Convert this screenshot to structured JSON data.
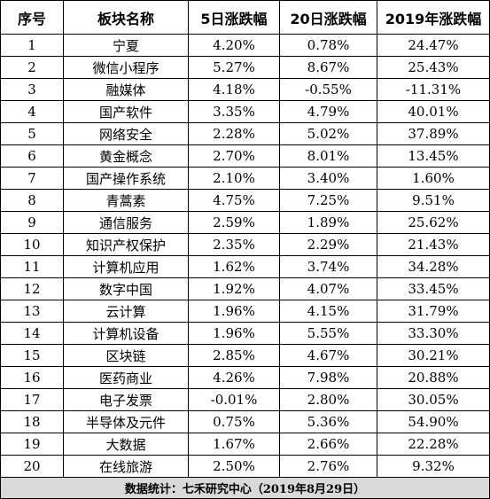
{
  "table": {
    "headers": [
      "序号",
      "板块名称",
      "5日涨跌幅",
      "20日涨跌幅",
      "2019年涨跌幅"
    ],
    "rows": [
      [
        "1",
        "宁夏",
        "4.20%",
        "0.78%",
        "24.47%"
      ],
      [
        "2",
        "微信小程序",
        "5.27%",
        "8.67%",
        "25.43%"
      ],
      [
        "3",
        "融媒体",
        "4.18%",
        "-0.55%",
        "-11.31%"
      ],
      [
        "4",
        "国产软件",
        "3.35%",
        "4.79%",
        "40.01%"
      ],
      [
        "5",
        "网络安全",
        "2.28%",
        "5.02%",
        "37.89%"
      ],
      [
        "6",
        "黄金概念",
        "2.70%",
        "8.01%",
        "13.45%"
      ],
      [
        "7",
        "国产操作系统",
        "2.10%",
        "3.40%",
        "1.60%"
      ],
      [
        "8",
        "青蒿素",
        "4.75%",
        "7.25%",
        "9.51%"
      ],
      [
        "9",
        "通信服务",
        "2.59%",
        "1.89%",
        "25.62%"
      ],
      [
        "10",
        "知识产权保护",
        "2.35%",
        "2.29%",
        "21.43%"
      ],
      [
        "11",
        "计算机应用",
        "1.62%",
        "3.74%",
        "34.28%"
      ],
      [
        "12",
        "数字中国",
        "1.92%",
        "4.07%",
        "33.45%"
      ],
      [
        "13",
        "云计算",
        "1.96%",
        "4.15%",
        "31.79%"
      ],
      [
        "14",
        "计算机设备",
        "1.96%",
        "5.55%",
        "33.30%"
      ],
      [
        "15",
        "区块链",
        "2.85%",
        "4.67%",
        "30.21%"
      ],
      [
        "16",
        "医药商业",
        "4.26%",
        "7.98%",
        "20.88%"
      ],
      [
        "17",
        "电子发票",
        "-0.01%",
        "2.80%",
        "30.05%"
      ],
      [
        "18",
        "半导体及元件",
        "0.75%",
        "5.36%",
        "54.90%"
      ],
      [
        "19",
        "大数据",
        "1.67%",
        "2.66%",
        "22.28%"
      ],
      [
        "20",
        "在线旅游",
        "2.50%",
        "2.76%",
        "9.32%"
      ]
    ],
    "footer": "数据统计：七禾研究中心（2019年8月29日）"
  },
  "colors": {
    "border": "#000000",
    "footer_background": "#d9d9d9"
  }
}
